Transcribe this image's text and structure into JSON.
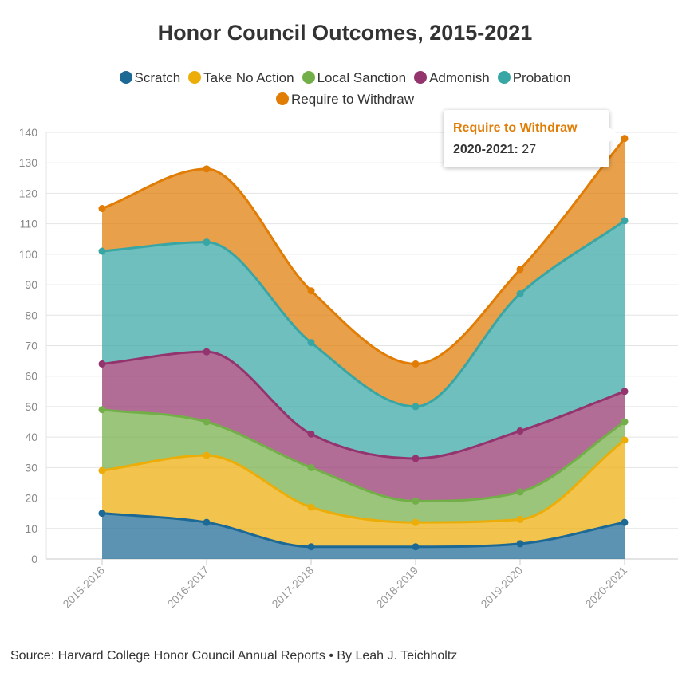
{
  "chart_data": {
    "type": "area",
    "stacked": true,
    "title": "Honor Council Outcomes, 2015-2021",
    "categories": [
      "2015-2016",
      "2016-2017",
      "2017-2018",
      "2018-2019",
      "2019-2020",
      "2020-2021"
    ],
    "ylim": [
      0,
      140
    ],
    "yticks": [
      0,
      10,
      20,
      30,
      40,
      50,
      60,
      70,
      80,
      90,
      100,
      110,
      120,
      130,
      140
    ],
    "xlabel": "",
    "ylabel": "",
    "grid": true,
    "legend_position": "top",
    "series": [
      {
        "name": "Scratch",
        "color": "#1d6996",
        "values": [
          15,
          12,
          4,
          4,
          5,
          12
        ]
      },
      {
        "name": "Take No Action",
        "color": "#edad08",
        "values": [
          14,
          22,
          13,
          8,
          8,
          27
        ]
      },
      {
        "name": "Local Sanction",
        "color": "#73af48",
        "values": [
          20,
          11,
          13,
          7,
          9,
          6
        ]
      },
      {
        "name": "Admonish",
        "color": "#94346e",
        "values": [
          15,
          23,
          11,
          14,
          20,
          10
        ]
      },
      {
        "name": "Probation",
        "color": "#38a6a5",
        "values": [
          37,
          36,
          30,
          17,
          45,
          56
        ]
      },
      {
        "name": "Require to Withdraw",
        "color": "#e17c05",
        "values": [
          14,
          24,
          17,
          14,
          8,
          27
        ]
      }
    ]
  },
  "tooltip": {
    "series_name": "Require to Withdraw",
    "category": "2020-2021:",
    "value": "27",
    "color": "#e17c05"
  },
  "source": "Source: Harvard College Honor Council Annual Reports • By Leah J. Teichholtz"
}
